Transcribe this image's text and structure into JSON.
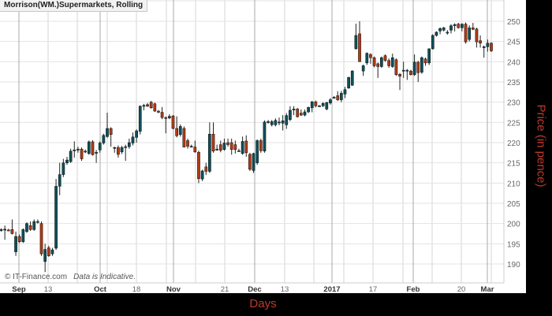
{
  "chart_data": {
    "type": "candlestick",
    "title": "Morrison(WM.)Supermarkets, Rolling",
    "xlabel": "Days",
    "ylabel": "Price (in pence)",
    "ylim": [
      186,
      255
    ],
    "yticks": [
      190,
      195,
      200,
      205,
      210,
      215,
      220,
      225,
      230,
      235,
      240,
      245,
      250
    ],
    "xticks": [
      {
        "label": "Sep",
        "bold": true
      },
      {
        "label": "13",
        "bold": false
      },
      {
        "label": "Oct",
        "bold": true
      },
      {
        "label": "18",
        "bold": false
      },
      {
        "label": "Nov",
        "bold": true
      },
      {
        "label": "21",
        "bold": false
      },
      {
        "label": "Dec",
        "bold": true
      },
      {
        "label": "13",
        "bold": false
      },
      {
        "label": "2017",
        "bold": true
      },
      {
        "label": "17",
        "bold": false
      },
      {
        "label": "Feb",
        "bold": true
      },
      {
        "label": "20",
        "bold": false
      },
      {
        "label": "Mar",
        "bold": true
      }
    ],
    "grid": true,
    "colors": {
      "up": "#0e4f59",
      "down": "#b23a12",
      "wick": "#222222",
      "grid": "#e3e3e3",
      "month_grid": "#a8a8a8"
    },
    "ohlc": [
      [
        198.4,
        198.8,
        198.0,
        198.5
      ],
      [
        198.5,
        199.5,
        196,
        198.6
      ],
      [
        198.4,
        198.7,
        198.1,
        198.2
      ],
      [
        198.5,
        201,
        197.3,
        197.5
      ],
      [
        193,
        198,
        192,
        196.8
      ],
      [
        196.8,
        197.3,
        195.2,
        195.5
      ],
      [
        195.5,
        198.8,
        195.2,
        198.5
      ],
      [
        198,
        200.3,
        197.7,
        200
      ],
      [
        199.5,
        200.5,
        198.2,
        198.5
      ],
      [
        198.5,
        201,
        198.2,
        200.5
      ],
      [
        200.3,
        201,
        200,
        200.5
      ],
      [
        200,
        200.5,
        192,
        192.5
      ],
      [
        190.6,
        195,
        188,
        193.6
      ],
      [
        194,
        194.5,
        191.8,
        192
      ],
      [
        192.5,
        194,
        192,
        193.5
      ],
      [
        193.9,
        211,
        193.5,
        209.2
      ],
      [
        209.2,
        215,
        207,
        212.1
      ],
      [
        212.1,
        216,
        211.5,
        215
      ],
      [
        215,
        216.5,
        214.5,
        215.7
      ],
      [
        215.3,
        218.5,
        215,
        217.9
      ],
      [
        218.1,
        220.3,
        216.3,
        218.2
      ],
      [
        218.3,
        219,
        217.5,
        218.4
      ],
      [
        218.4,
        218.8,
        215.5,
        216
      ],
      [
        217.8,
        218.3,
        217.4,
        217.9
      ],
      [
        217.3,
        220.5,
        217,
        220.2
      ],
      [
        220.2,
        220.6,
        216.8,
        217
      ],
      [
        217.6,
        218.2,
        215,
        217.6
      ],
      [
        218.2,
        220.3,
        217.5,
        219.9
      ],
      [
        219.9,
        222.2,
        219.5,
        221.8
      ],
      [
        221.5,
        227.4,
        221.2,
        223.5
      ],
      [
        223.5,
        223.8,
        219,
        222
      ],
      [
        218.6,
        219,
        217.5,
        218.8
      ],
      [
        218.8,
        219.3,
        216.3,
        217.1
      ],
      [
        217.7,
        219.2,
        217.2,
        218.8
      ],
      [
        218.8,
        219.5,
        215.5,
        219
      ],
      [
        219,
        221,
        218.5,
        220
      ],
      [
        219.9,
        222.5,
        219.3,
        221.4
      ],
      [
        221.3,
        223.3,
        220,
        222.9
      ],
      [
        222.8,
        229.2,
        222,
        229
      ],
      [
        229,
        229.6,
        228,
        229.2
      ],
      [
        229.4,
        229.8,
        228.8,
        229
      ],
      [
        230,
        230.3,
        228.4,
        228.6
      ],
      [
        229.6,
        229.9,
        227.6,
        227.8
      ],
      [
        227.8,
        228,
        227.3,
        227.5
      ],
      [
        227.5,
        228.8,
        225.8,
        226.2
      ],
      [
        226.2,
        226.5,
        222.3,
        226.1
      ],
      [
        226.1,
        227,
        225.8,
        226.5
      ],
      [
        226.6,
        226.8,
        223.3,
        223.5
      ],
      [
        223.5,
        226.5,
        221.3,
        221.7
      ],
      [
        222,
        224.5,
        221.5,
        224
      ],
      [
        223.5,
        224,
        218.8,
        218.9
      ],
      [
        220.5,
        221,
        218.5,
        219.1
      ],
      [
        219.1,
        219.5,
        218.8,
        219.1
      ],
      [
        218.9,
        220.5,
        217.5,
        217.7
      ],
      [
        217.6,
        218,
        210,
        211.1
      ],
      [
        211,
        213.3,
        210.5,
        213
      ],
      [
        214,
        215,
        212,
        212.9
      ],
      [
        212.9,
        225,
        212.5,
        222.1
      ],
      [
        222.1,
        225,
        217.5,
        217.9
      ],
      [
        218.4,
        219.5,
        218,
        218.4
      ],
      [
        219.5,
        220.5,
        217.6,
        218.1
      ],
      [
        218.3,
        221,
        218,
        219.9
      ],
      [
        220,
        221,
        219,
        219.5
      ],
      [
        220,
        221,
        217,
        218.3
      ],
      [
        219.5,
        220.5,
        217.3,
        218.3
      ],
      [
        218,
        218.5,
        217.8,
        218
      ],
      [
        217.3,
        221.5,
        217,
        220.3
      ],
      [
        220.4,
        221.8,
        216.5,
        217.5
      ],
      [
        217.1,
        217.5,
        213,
        213.4
      ],
      [
        213.1,
        217.5,
        212.5,
        217.3
      ],
      [
        215,
        220.8,
        214.5,
        220.5
      ],
      [
        220.5,
        221,
        217.5,
        218
      ],
      [
        217.9,
        225.5,
        217.5,
        225.1
      ],
      [
        225.2,
        225.6,
        224.7,
        225.2
      ],
      [
        224.4,
        225.6,
        224,
        225.2
      ],
      [
        224.4,
        226,
        224,
        225.5
      ],
      [
        225.1,
        226.2,
        224.3,
        225.1
      ],
      [
        224.8,
        226.8,
        223,
        225.4
      ],
      [
        224.4,
        227.3,
        223.4,
        226.7
      ],
      [
        225.7,
        229,
        225.3,
        228
      ],
      [
        228.3,
        229,
        226.8,
        228.3
      ],
      [
        228.3,
        228.6,
        226.2,
        226.4
      ],
      [
        227.3,
        228.2,
        226.6,
        226.8
      ],
      [
        226.8,
        228.2,
        226.5,
        227.6
      ],
      [
        227.6,
        228.9,
        227.3,
        228.7
      ],
      [
        228.6,
        230.3,
        227.5,
        230.1
      ],
      [
        230.1,
        230.4,
        228.7,
        229.1
      ],
      [
        229.1,
        229.3,
        228.9,
        229.1
      ],
      [
        229.1,
        230,
        228.8,
        229.7
      ],
      [
        228.3,
        230.1,
        228,
        229.9
      ],
      [
        229.8,
        231,
        229.4,
        230.6
      ],
      [
        231.2,
        231.5,
        230.9,
        231.2
      ],
      [
        231.6,
        232.7,
        230.3,
        230.6
      ],
      [
        230.6,
        232.8,
        230,
        232.2
      ],
      [
        232,
        233.8,
        231,
        233.1
      ],
      [
        233.5,
        236.3,
        233.3,
        236.1
      ],
      [
        234.2,
        237.9,
        234,
        237.7
      ],
      [
        243.2,
        249.4,
        243,
        246.5
      ],
      [
        246.9,
        250,
        240,
        240
      ],
      [
        237.7,
        239.3,
        236.5,
        239
      ],
      [
        239.7,
        242.3,
        239.2,
        242.1
      ],
      [
        241.8,
        242.1,
        239.5,
        241
      ],
      [
        241,
        241.3,
        238.6,
        239
      ],
      [
        239.5,
        239.8,
        236,
        238.8
      ],
      [
        238.8,
        241.3,
        238.5,
        241
      ],
      [
        241.5,
        241.8,
        240,
        240.3
      ],
      [
        240.3,
        240.8,
        238.5,
        239
      ],
      [
        238.8,
        242,
        238.5,
        241
      ],
      [
        240.5,
        240.8,
        236.5,
        236.8
      ],
      [
        236.9,
        237.2,
        233,
        236.4
      ],
      [
        237.9,
        240,
        236,
        237.9
      ],
      [
        237.9,
        238.2,
        235.5,
        237.9
      ],
      [
        237.7,
        238,
        236.6,
        236.8
      ],
      [
        236.8,
        241.8,
        236.5,
        239.9
      ],
      [
        239.9,
        240.2,
        235,
        237.3
      ],
      [
        237.4,
        241.3,
        237,
        241
      ],
      [
        240.7,
        241,
        239,
        239.7
      ],
      [
        239.7,
        243.3,
        239.2,
        243.2
      ],
      [
        243.2,
        246.8,
        243,
        246.5
      ],
      [
        246.5,
        247.5,
        246.2,
        247.3
      ],
      [
        247.6,
        248.5,
        246.8,
        248.2
      ],
      [
        247.8,
        248.6,
        247.5,
        248.4
      ],
      [
        247.3,
        247.8,
        246.7,
        247.3
      ],
      [
        247.8,
        249.3,
        247,
        248.9
      ],
      [
        248.9,
        249.5,
        247.5,
        249.2
      ],
      [
        249.3,
        249.6,
        248.2,
        248.4
      ],
      [
        248.4,
        249.5,
        247.5,
        249.3
      ],
      [
        249.3,
        249.7,
        244.5,
        244.9
      ],
      [
        245.5,
        249,
        245,
        248.4
      ],
      [
        248.4,
        249.6,
        247.8,
        248
      ],
      [
        248.1,
        248.4,
        243.5,
        244.9
      ],
      [
        245.2,
        246.5,
        243.5,
        244.6
      ],
      [
        243.7,
        244,
        241,
        243.7
      ],
      [
        243.7,
        245.5,
        242.5,
        244.6
      ],
      [
        244.6,
        244.8,
        242.4,
        242.7
      ]
    ]
  },
  "footer": {
    "copyright": "© IT-Finance.com",
    "disclaimer": "Data is Indicative."
  }
}
